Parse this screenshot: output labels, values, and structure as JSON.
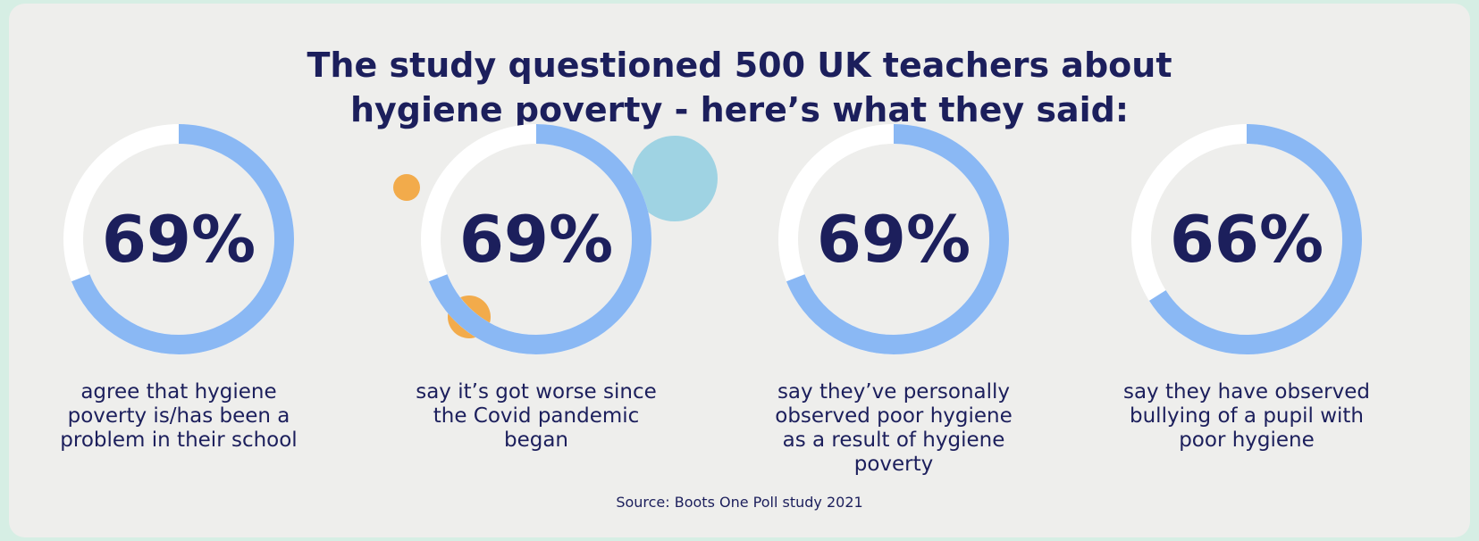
{
  "title": "The study questioned 500 UK teachers about hygiene poverty - here’s what they said:",
  "source": "Source: Boots One Poll study 2021",
  "chart_data": [
    {
      "type": "donut",
      "values": [
        69
      ],
      "value_labels": [
        "69%"
      ],
      "color": "#8ab8f4",
      "caption": "agree that hygiene poverty is/has been a problem in their school"
    },
    {
      "type": "donut",
      "values": [
        69
      ],
      "value_labels": [
        "69%"
      ],
      "color": "#8ab8f4",
      "caption": "say it’s got worse since the Covid pandemic began"
    },
    {
      "type": "donut",
      "values": [
        69
      ],
      "value_labels": [
        "69%"
      ],
      "color": "#8ab8f4",
      "caption": "say they’ve personally observed poor hygiene as a result of hygiene poverty"
    },
    {
      "type": "donut",
      "values": [
        66
      ],
      "value_labels": [
        "66%"
      ],
      "color": "#8ab8f4",
      "caption": "say they have observed bullying of a pupil with poor hygiene"
    }
  ]
}
